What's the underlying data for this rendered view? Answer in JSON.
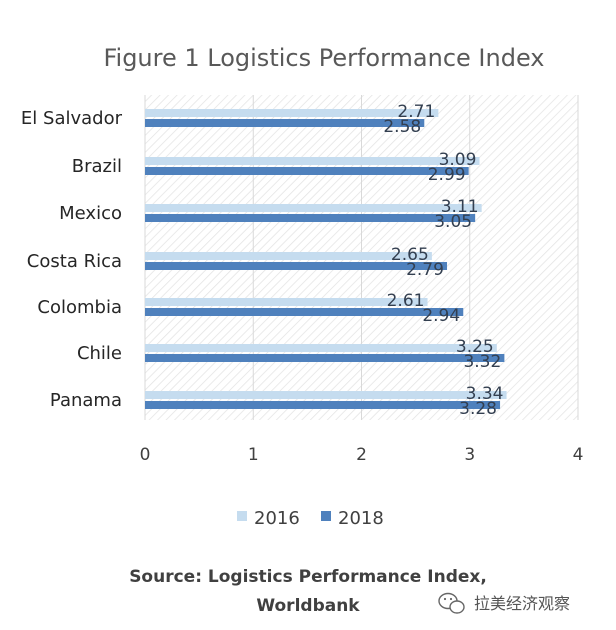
{
  "chart_data": {
    "type": "bar",
    "orientation": "horizontal",
    "title": "Figure 1 Logistics Performance Index",
    "categories": [
      "El Salvador",
      "Brazil",
      "Mexico",
      "Costa Rica",
      "Colombia",
      "Chile",
      "Panama"
    ],
    "series": [
      {
        "name": "2016",
        "color": "#c5dcef",
        "values": [
          2.71,
          3.09,
          3.11,
          2.65,
          2.61,
          3.25,
          3.34
        ]
      },
      {
        "name": "2018",
        "color": "#4f81bd",
        "values": [
          2.58,
          2.99,
          3.05,
          2.79,
          2.94,
          3.32,
          3.28
        ]
      }
    ],
    "xlim": [
      0,
      4
    ],
    "xticks": [
      "0",
      "1",
      "2",
      "3",
      "4"
    ],
    "xlabel": "",
    "ylabel": "",
    "grid": true,
    "data_labels": true,
    "legend_position": "bottom"
  },
  "source": {
    "line1": "Source: Logistics Performance Index,",
    "line2": "Worldbank"
  },
  "watermark": {
    "text": "拉美经济观察",
    "icon": "wechat-icon"
  }
}
